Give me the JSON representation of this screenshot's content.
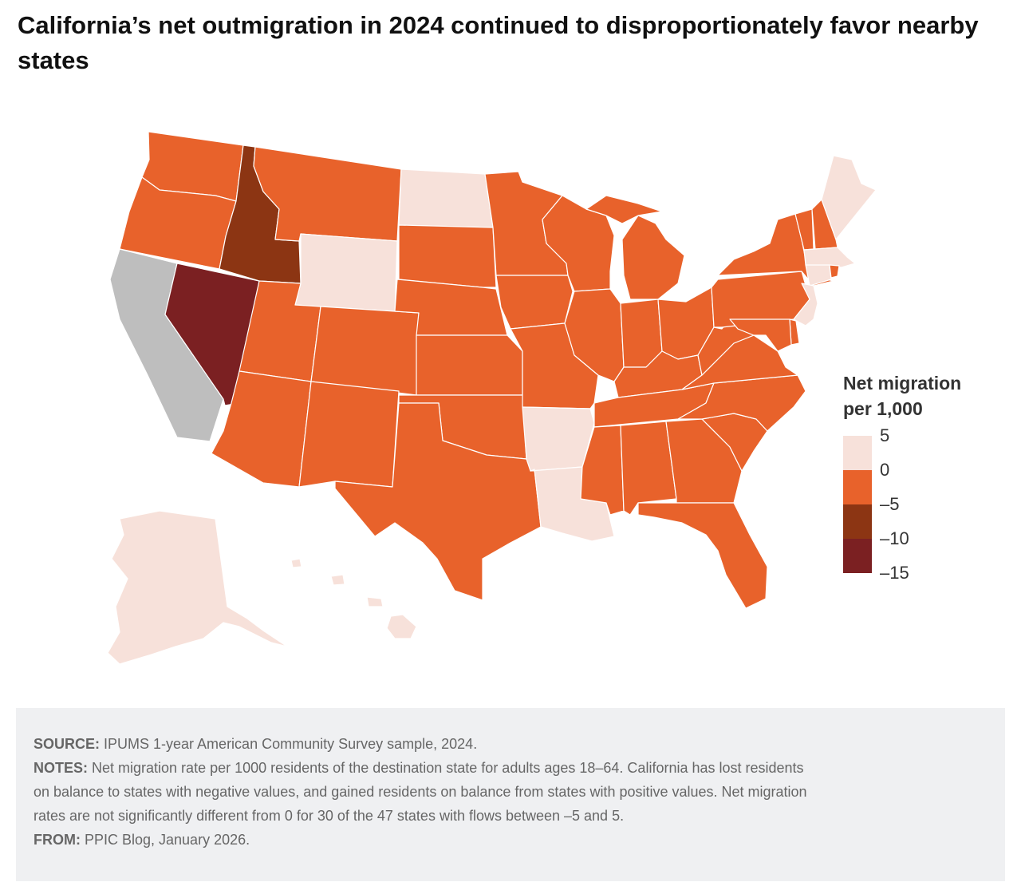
{
  "title": "California’s net outmigration in 2024 continued to disproportionately favor nearby states",
  "legend": {
    "title_line1": "Net migration",
    "title_line2": "per 1,000",
    "ticks": [
      "5",
      "0",
      "–5",
      "–10",
      "–15"
    ]
  },
  "colors": {
    "positive_0_5": "#f7e1da",
    "negative_0_5": "#e8622b",
    "negative_5_10": "#8c3513",
    "negative_10_15": "#7b2022",
    "origin_state": "#bebebe",
    "border": "#ffffff"
  },
  "map_data": {
    "type": "choropleth",
    "region": "United States",
    "origin_state": "California",
    "bins": [
      {
        "min": 0,
        "max": 5,
        "color": "#f7e1da"
      },
      {
        "min": -5,
        "max": 0,
        "color": "#e8622b"
      },
      {
        "min": -10,
        "max": -5,
        "color": "#8c3513"
      },
      {
        "min": -15,
        "max": -10,
        "color": "#7b2022"
      }
    ],
    "state_bins": {
      "Washington": "0 to -5",
      "Oregon": "0 to -5",
      "California": "origin",
      "Nevada": "-10 to -15",
      "Idaho": "-5 to -10",
      "Montana": "0 to -5",
      "Wyoming": "0 to 5",
      "Utah": "0 to -5",
      "Arizona": "0 to -5",
      "Colorado": "0 to -5",
      "New Mexico": "0 to -5",
      "North Dakota": "0 to 5",
      "South Dakota": "0 to -5",
      "Nebraska": "0 to -5",
      "Kansas": "0 to -5",
      "Oklahoma": "0 to -5",
      "Texas": "0 to -5",
      "Minnesota": "0 to -5",
      "Iowa": "0 to -5",
      "Missouri": "0 to -5",
      "Arkansas": "0 to 5",
      "Louisiana": "0 to 5",
      "Wisconsin": "0 to -5",
      "Illinois": "0 to -5",
      "Michigan": "0 to -5",
      "Indiana": "0 to -5",
      "Ohio": "0 to -5",
      "Kentucky": "0 to -5",
      "Tennessee": "0 to -5",
      "Mississippi": "0 to -5",
      "Alabama": "0 to -5",
      "Georgia": "0 to -5",
      "Florida": "0 to -5",
      "South Carolina": "0 to -5",
      "North Carolina": "0 to -5",
      "Virginia": "0 to -5",
      "West Virginia": "0 to -5",
      "Pennsylvania": "0 to -5",
      "New York": "0 to -5",
      "Vermont": "0 to -5",
      "New Hampshire": "0 to -5",
      "Maine": "0 to 5",
      "Massachusetts": "0 to 5",
      "Connecticut": "0 to 5",
      "Rhode Island": "0 to -5",
      "New Jersey": "0 to 5",
      "Delaware": "0 to -5",
      "Maryland": "0 to -5",
      "Alaska": "0 to 5",
      "Hawaii": "0 to 5"
    }
  },
  "footer": {
    "source_label": "SOURCE:",
    "source_text": " IPUMS 1-year American Community Survey sample, 2024.",
    "notes_label": "NOTES:",
    "notes_line1": " Net migration rate per 1000 residents of the destination state for adults ages 18–64. California has lost residents",
    "notes_line2": "on balance to states with negative values, and gained residents on balance from states with positive values. Net migration",
    "notes_line3": "rates are not significantly different from 0 for 30 of the 47 states with flows between –5 and 5.",
    "from_label": "FROM:",
    "from_text": " PPIC Blog, January 2026."
  }
}
